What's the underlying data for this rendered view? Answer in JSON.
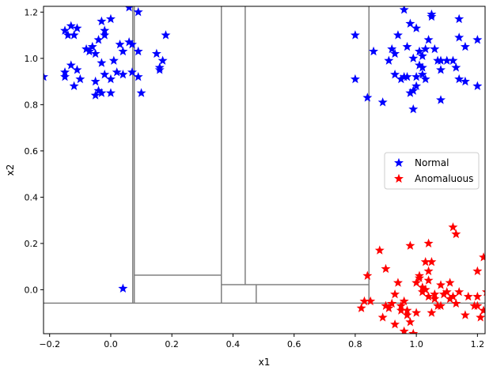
{
  "chart_data": {
    "type": "scatter",
    "title": "",
    "xlabel": "x1",
    "ylabel": "x2",
    "xlim": [
      -0.22,
      1.225
    ],
    "ylim": [
      -0.19,
      1.225
    ],
    "xticks": [
      -0.2,
      0.0,
      0.2,
      0.4,
      0.6,
      0.8,
      1.0,
      1.2
    ],
    "yticks": [
      0.0,
      0.2,
      0.4,
      0.6,
      0.8,
      1.0,
      1.2
    ],
    "xtick_labels": [
      "−0.2",
      "0.0",
      "0.2",
      "0.4",
      "0.6",
      "0.8",
      "1.0",
      "1.2"
    ],
    "ytick_labels": [
      "0.0",
      "0.2",
      "0.4",
      "0.6",
      "0.8",
      "1.0",
      "1.2"
    ],
    "grid": false,
    "legend_position": "center-right",
    "colors": {
      "normal": "#0000ff",
      "anomalous": "#ff0000",
      "split_lines": "#808080",
      "frame": "#000000"
    },
    "series": [
      {
        "name": "Normal",
        "color": "#0000ff",
        "marker": "star",
        "points": [
          [
            -0.22,
            0.92
          ],
          [
            0.04,
            0.005
          ],
          [
            -0.15,
            1.12
          ],
          [
            -0.13,
            1.14
          ],
          [
            -0.12,
            1.1
          ],
          [
            -0.11,
            1.13
          ],
          [
            -0.14,
            1.1
          ],
          [
            -0.03,
            1.16
          ],
          [
            -0.02,
            1.12
          ],
          [
            0.0,
            1.17
          ],
          [
            -0.04,
            1.08
          ],
          [
            -0.02,
            1.1
          ],
          [
            0.06,
            1.22
          ],
          [
            0.09,
            1.2
          ],
          [
            0.18,
            1.1
          ],
          [
            -0.15,
            0.94
          ],
          [
            -0.13,
            0.97
          ],
          [
            -0.11,
            0.95
          ],
          [
            -0.1,
            0.91
          ],
          [
            -0.15,
            0.92
          ],
          [
            -0.12,
            0.88
          ],
          [
            -0.07,
            1.03
          ],
          [
            -0.06,
            1.05
          ],
          [
            -0.05,
            1.02
          ],
          [
            -0.03,
            0.98
          ],
          [
            -0.05,
            0.9
          ],
          [
            -0.02,
            0.93
          ],
          [
            0.0,
            0.91
          ],
          [
            -0.04,
            0.86
          ],
          [
            -0.05,
            0.84
          ],
          [
            -0.03,
            0.85
          ],
          [
            0.0,
            0.85
          ],
          [
            0.01,
            0.99
          ],
          [
            0.02,
            0.94
          ],
          [
            0.03,
            1.06
          ],
          [
            0.04,
            1.03
          ],
          [
            0.04,
            0.93
          ],
          [
            0.06,
            1.07
          ],
          [
            0.07,
            1.06
          ],
          [
            0.07,
            0.94
          ],
          [
            0.09,
            0.92
          ],
          [
            0.09,
            1.03
          ],
          [
            0.1,
            0.85
          ],
          [
            0.15,
            1.02
          ],
          [
            0.16,
            0.95
          ],
          [
            0.16,
            0.96
          ],
          [
            0.17,
            0.99
          ],
          [
            -0.08,
            1.04
          ],
          [
            0.8,
            1.1
          ],
          [
            0.8,
            0.91
          ],
          [
            0.84,
            0.83
          ],
          [
            0.86,
            1.03
          ],
          [
            0.89,
            0.81
          ],
          [
            0.91,
            0.99
          ],
          [
            0.92,
            1.04
          ],
          [
            0.93,
            1.02
          ],
          [
            0.93,
            0.93
          ],
          [
            0.94,
            1.1
          ],
          [
            0.95,
            0.91
          ],
          [
            0.96,
            1.21
          ],
          [
            0.97,
            1.05
          ],
          [
            0.97,
            0.92
          ],
          [
            0.98,
            1.15
          ],
          [
            0.99,
            0.86
          ],
          [
            0.99,
            0.78
          ],
          [
            0.99,
            1.0
          ],
          [
            1.0,
            0.92
          ],
          [
            1.0,
            1.13
          ],
          [
            1.01,
            0.97
          ],
          [
            1.01,
            1.03
          ],
          [
            1.02,
            0.96
          ],
          [
            1.02,
            0.93
          ],
          [
            1.03,
            1.04
          ],
          [
            1.03,
            0.91
          ],
          [
            1.04,
            1.08
          ],
          [
            1.05,
            1.18
          ],
          [
            1.05,
            1.19
          ],
          [
            1.06,
            1.04
          ],
          [
            1.07,
            0.99
          ],
          [
            1.08,
            0.99
          ],
          [
            1.08,
            0.95
          ],
          [
            1.08,
            0.82
          ],
          [
            1.1,
            0.99
          ],
          [
            1.12,
            0.99
          ],
          [
            1.13,
            0.96
          ],
          [
            1.14,
            1.17
          ],
          [
            1.14,
            1.09
          ],
          [
            1.14,
            0.91
          ],
          [
            1.16,
            0.9
          ],
          [
            1.16,
            1.05
          ],
          [
            1.2,
            1.08
          ],
          [
            1.2,
            0.88
          ],
          [
            1.0,
            0.88
          ],
          [
            0.98,
            0.85
          ],
          [
            0.96,
            0.92
          ],
          [
            1.02,
            1.01
          ]
        ]
      },
      {
        "name": "Anomaluous",
        "color": "#ff0000",
        "marker": "star",
        "points": [
          [
            0.82,
            -0.08
          ],
          [
            0.83,
            -0.05
          ],
          [
            0.85,
            -0.05
          ],
          [
            0.84,
            0.06
          ],
          [
            0.88,
            0.17
          ],
          [
            0.89,
            -0.12
          ],
          [
            0.9,
            0.09
          ],
          [
            0.9,
            -0.07
          ],
          [
            0.91,
            -0.08
          ],
          [
            0.92,
            -0.06
          ],
          [
            0.93,
            -0.15
          ],
          [
            0.93,
            -0.02
          ],
          [
            0.94,
            0.03
          ],
          [
            0.95,
            -0.09
          ],
          [
            0.95,
            -0.07
          ],
          [
            0.96,
            -0.05
          ],
          [
            0.96,
            -0.18
          ],
          [
            0.97,
            -0.11
          ],
          [
            0.97,
            -0.09
          ],
          [
            0.98,
            -0.14
          ],
          [
            0.98,
            0.19
          ],
          [
            0.99,
            -0.19
          ],
          [
            1.0,
            0.03
          ],
          [
            1.0,
            -0.1
          ],
          [
            1.01,
            0.05
          ],
          [
            1.01,
            0.06
          ],
          [
            1.02,
            -0.01
          ],
          [
            1.02,
            0.01
          ],
          [
            1.03,
            0.0
          ],
          [
            1.03,
            0.12
          ],
          [
            1.04,
            0.04
          ],
          [
            1.04,
            0.08
          ],
          [
            1.04,
            -0.03
          ],
          [
            1.04,
            0.2
          ],
          [
            1.05,
            0.12
          ],
          [
            1.05,
            -0.1
          ],
          [
            1.06,
            -0.04
          ],
          [
            1.07,
            -0.07
          ],
          [
            1.08,
            0.02
          ],
          [
            1.08,
            -0.07
          ],
          [
            1.09,
            -0.02
          ],
          [
            1.1,
            -0.01
          ],
          [
            1.11,
            -0.04
          ],
          [
            1.11,
            0.03
          ],
          [
            1.12,
            -0.03
          ],
          [
            1.12,
            0.27
          ],
          [
            1.13,
            0.24
          ],
          [
            1.13,
            -0.06
          ],
          [
            1.14,
            -0.01
          ],
          [
            1.16,
            -0.11
          ],
          [
            1.17,
            -0.03
          ],
          [
            1.19,
            -0.07
          ],
          [
            1.2,
            0.08
          ],
          [
            1.2,
            -0.07
          ],
          [
            1.2,
            -0.03
          ],
          [
            1.21,
            -0.12
          ],
          [
            1.22,
            0.14
          ],
          [
            1.22,
            -0.09
          ],
          [
            1.23,
            -0.01
          ],
          [
            1.06,
            -0.02
          ]
        ]
      }
    ],
    "split_lines": [
      {
        "orientation": "horizontal",
        "y": -0.058,
        "x_range": [
          -0.22,
          1.225
        ]
      },
      {
        "orientation": "vertical",
        "x": 0.072,
        "y_range": [
          -0.058,
          1.225
        ]
      },
      {
        "orientation": "vertical",
        "x": 0.077,
        "y_range": [
          -0.058,
          1.225
        ]
      },
      {
        "orientation": "horizontal",
        "y": 0.063,
        "x_range": [
          0.077,
          0.362
        ]
      },
      {
        "orientation": "vertical",
        "x": 0.362,
        "y_range": [
          -0.058,
          1.225
        ]
      },
      {
        "orientation": "vertical",
        "x": 0.44,
        "y_range": [
          0.022,
          1.225
        ]
      },
      {
        "orientation": "horizontal",
        "y": 0.022,
        "x_range": [
          0.362,
          0.845
        ]
      },
      {
        "orientation": "vertical",
        "x": 0.476,
        "y_range": [
          -0.058,
          0.022
        ]
      },
      {
        "orientation": "vertical",
        "x": 0.845,
        "y_range": [
          -0.058,
          1.225
        ]
      }
    ]
  }
}
